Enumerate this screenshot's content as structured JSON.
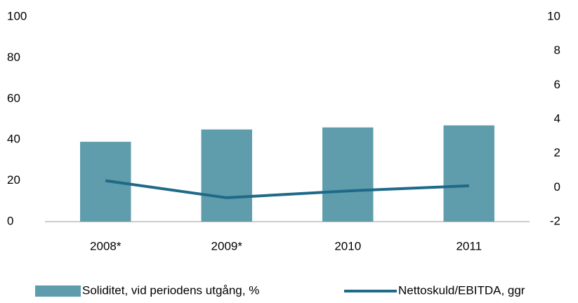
{
  "chart_data": {
    "type": "bar",
    "categories": [
      "2008*",
      "2009*",
      "2010",
      "2011"
    ],
    "series": [
      {
        "name": "Soliditet, vid periodens utgång, %",
        "type": "bar",
        "color": "#5f9dac",
        "values": [
          39,
          45,
          46,
          47
        ]
      },
      {
        "name": "Nettoskuld/EBITDA, ggr",
        "type": "line",
        "axis": "y2",
        "color": "#1e6a88",
        "values": [
          0.4,
          -0.6,
          -0.2,
          0.1
        ]
      }
    ],
    "ylim": [
      0,
      100
    ],
    "yticks": [
      0,
      20,
      40,
      60,
      80,
      100
    ],
    "y2lim": [
      -2,
      10
    ],
    "y2ticks": [
      -2,
      0,
      2,
      4,
      6,
      8,
      10
    ],
    "legend": "bottom"
  }
}
